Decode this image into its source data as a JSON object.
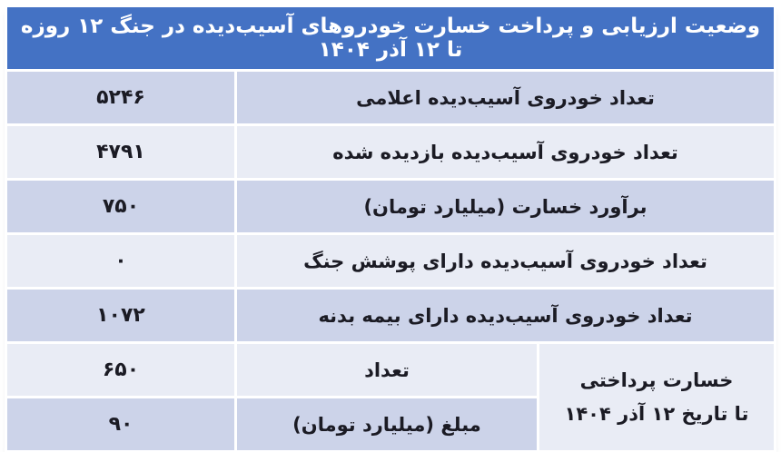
{
  "title": "وضعیت ارزیابی و پرداخت خسارت خودروهای آسیب‌دیده در جنگ ۱۲ روزه تا ۱۲ آذر ۱۴۰۴",
  "colors": {
    "header": "#4472c4",
    "header_text": "#ffffff",
    "band_dark": "#ccd3e9",
    "band_light": "#e9ecf5",
    "grid": "#ffffff",
    "text": "#1b1b24"
  },
  "rows": [
    {
      "label": "تعداد خودروی آسیب‌دیده اعلامی",
      "value": "۵۲۴۶"
    },
    {
      "label": "تعداد خودروی آسیب‌دیده بازدیده شده",
      "value": "۴۷۹۱"
    },
    {
      "label": "برآورد خسارت (میلیارد تومان)",
      "value": "۷۵۰"
    },
    {
      "label": "تعداد خودروی آسیب‌دیده دارای پوشش جنگ",
      "value": "۰"
    },
    {
      "label": "تعداد خودروی آسیب‌دیده دارای بیمه بدنه",
      "value": "۱۰۷۲"
    }
  ],
  "payment": {
    "line1": "خسارت پرداختی",
    "line2": "تا تاریخ ۱۲ آذر ۱۴۰۴",
    "rows": [
      {
        "label": "تعداد",
        "value": "۶۵۰"
      },
      {
        "label": "مبلغ (میلیارد تومان)",
        "value": "۹۰"
      }
    ]
  },
  "chart_data": {
    "type": "table",
    "title": "وضعیت ارزیابی و پرداخت خسارت خودروهای آسیب‌دیده در جنگ ۱۲ روزه تا ۱۲ آذر ۱۴۰۴",
    "rows": [
      {
        "label": "تعداد خودروی آسیب‌دیده اعلامی",
        "value": 5246
      },
      {
        "label": "تعداد خودروی آسیب‌دیده بازدیده شده",
        "value": 4791
      },
      {
        "label": "برآورد خسارت (میلیارد تومان)",
        "value": 750
      },
      {
        "label": "تعداد خودروی آسیب‌دیده دارای پوشش جنگ",
        "value": 0
      },
      {
        "label": "تعداد خودروی آسیب‌دیده دارای بیمه بدنه",
        "value": 1072
      },
      {
        "label": "خسارت پرداختی تا تاریخ ۱۲ آذر ۱۴۰۴ - تعداد",
        "value": 650
      },
      {
        "label": "خسارت پرداختی تا تاریخ ۱۲ آذر ۱۴۰۴ - مبلغ (میلیارد تومان)",
        "value": 90
      }
    ]
  }
}
